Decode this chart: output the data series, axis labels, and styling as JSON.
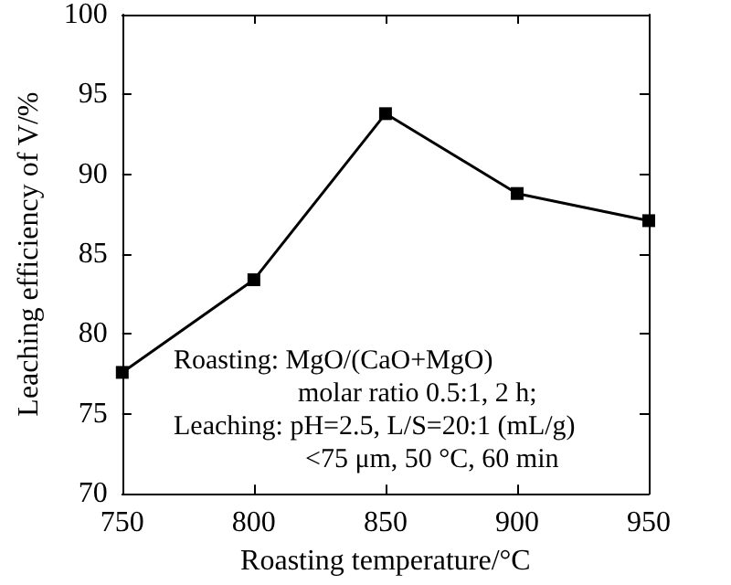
{
  "chart_data": {
    "type": "line",
    "xlabel": "Roasting temperature/°C",
    "ylabel": "Leaching efficiency of V/%",
    "x": [
      750,
      800,
      850,
      900,
      950
    ],
    "series": [
      {
        "color": "#000000",
        "values": [
          77.6,
          83.4,
          93.8,
          88.8,
          87.1
        ]
      }
    ],
    "xlim": [
      750,
      950
    ],
    "xticks": [
      750,
      800,
      850,
      900,
      950
    ],
    "ylim": [
      70,
      100
    ],
    "yticks": [
      70,
      75,
      80,
      85,
      90,
      95,
      100
    ],
    "grid": false,
    "marker": "square",
    "line_style": "solid",
    "annotations": [
      "Roasting: MgO/(CaO+MgO)",
      "molar ratio 0.5:1, 2 h;",
      "Leaching: pH=2.5, L/S=20:1 (mL/g)",
      "<75 μm, 50 °C, 60 min"
    ]
  }
}
